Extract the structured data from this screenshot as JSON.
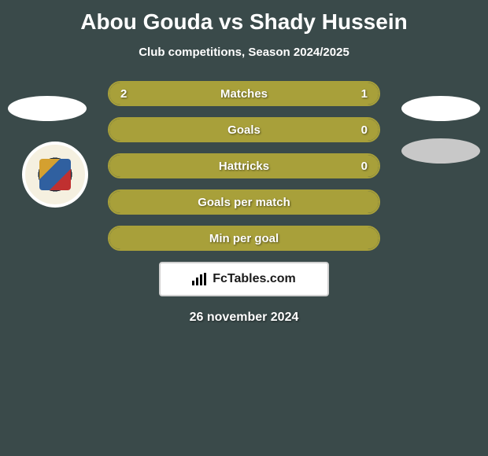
{
  "title": "Abou Gouda vs Shady Hussein",
  "subtitle": "Club competitions, Season 2024/2025",
  "colors": {
    "background": "#3a4a4a",
    "bar_fill": "#a8a03a",
    "bar_border": "#a8a03a",
    "text": "#ffffff",
    "ellipse_white": "#ffffff",
    "ellipse_gray": "#c8c8c8"
  },
  "stats": [
    {
      "label": "Matches",
      "left_value": "2",
      "right_value": "1",
      "left_pct": 67,
      "right_pct": 33
    },
    {
      "label": "Goals",
      "left_value": "",
      "right_value": "0",
      "left_pct": 100,
      "right_pct": 0
    },
    {
      "label": "Hattricks",
      "left_value": "",
      "right_value": "0",
      "left_pct": 100,
      "right_pct": 0
    },
    {
      "label": "Goals per match",
      "left_value": "",
      "right_value": "",
      "left_pct": 100,
      "right_pct": 0
    },
    {
      "label": "Min per goal",
      "left_value": "",
      "right_value": "",
      "left_pct": 100,
      "right_pct": 0
    }
  ],
  "brand": "FcTables.com",
  "date": "26 november 2024"
}
